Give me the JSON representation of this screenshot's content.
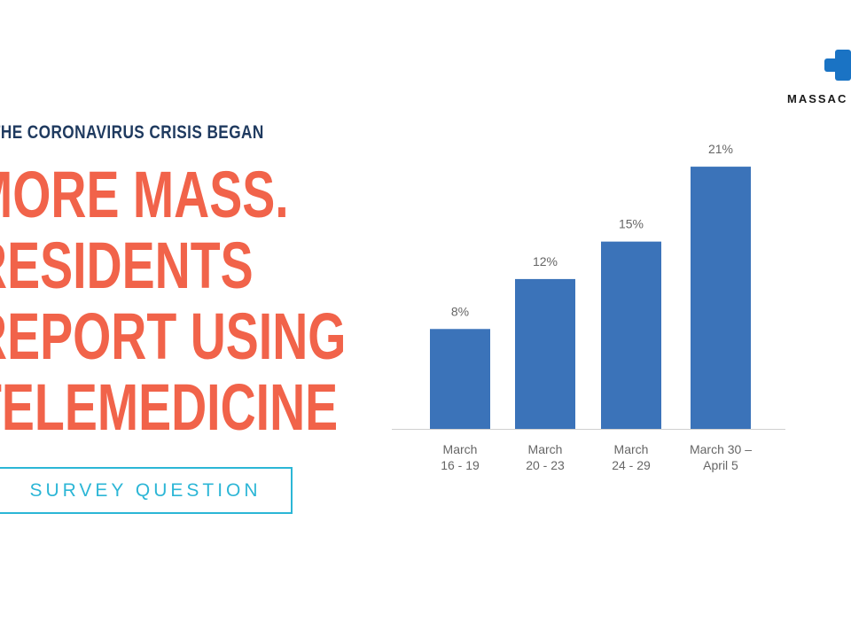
{
  "logo": {
    "text": "MASSAC",
    "icon": "medical-cross-icon",
    "color": "#1a73c4"
  },
  "kicker": "CE THE CORONAVIRUS CRISIS BEGAN",
  "headline": {
    "lines": [
      "MORE MASS.",
      "RESIDENTS",
      "REPORT USING",
      "TELEMEDICINE"
    ]
  },
  "survey_button": {
    "label": "SURVEY QUESTION"
  },
  "colors": {
    "bar": "#3b73b9",
    "headline": "#f1634a",
    "kicker": "#1f3a5f",
    "button": "#2cb6d6"
  },
  "chart_data": {
    "type": "bar",
    "categories": [
      [
        "March",
        "16 - 19"
      ],
      [
        "March",
        "20 - 23"
      ],
      [
        "March",
        "24 - 29"
      ],
      [
        "March 30 –",
        "April 5"
      ]
    ],
    "values": [
      8,
      12,
      15,
      21
    ],
    "value_labels": [
      "8%",
      "12%",
      "15%",
      "21%"
    ],
    "ylim": [
      0,
      22
    ],
    "grid": false,
    "title": "",
    "xlabel": "",
    "ylabel": ""
  }
}
